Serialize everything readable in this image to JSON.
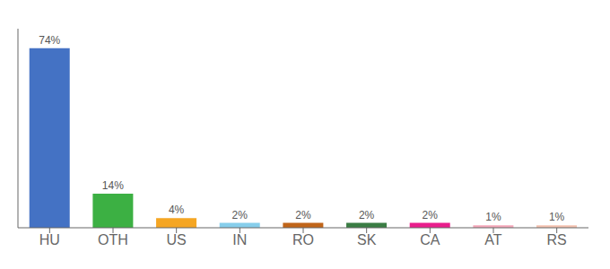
{
  "chart_data": {
    "type": "bar",
    "categories": [
      "HU",
      "OTH",
      "US",
      "IN",
      "RO",
      "SK",
      "CA",
      "AT",
      "RS"
    ],
    "values": [
      74,
      14,
      4,
      2,
      2,
      2,
      2,
      1,
      1
    ],
    "value_labels": [
      "74%",
      "14%",
      "4%",
      "2%",
      "2%",
      "2%",
      "2%",
      "1%",
      "1%"
    ],
    "colors": [
      "#4472c4",
      "#3cb043",
      "#f5a623",
      "#87ceeb",
      "#c0651a",
      "#3a7d44",
      "#e91e8c",
      "#f4a7b9",
      "#f4c2b0"
    ],
    "ylim": [
      0,
      82
    ],
    "yticks": [],
    "grid": false,
    "data_labels": true,
    "tick_labels": "x"
  }
}
